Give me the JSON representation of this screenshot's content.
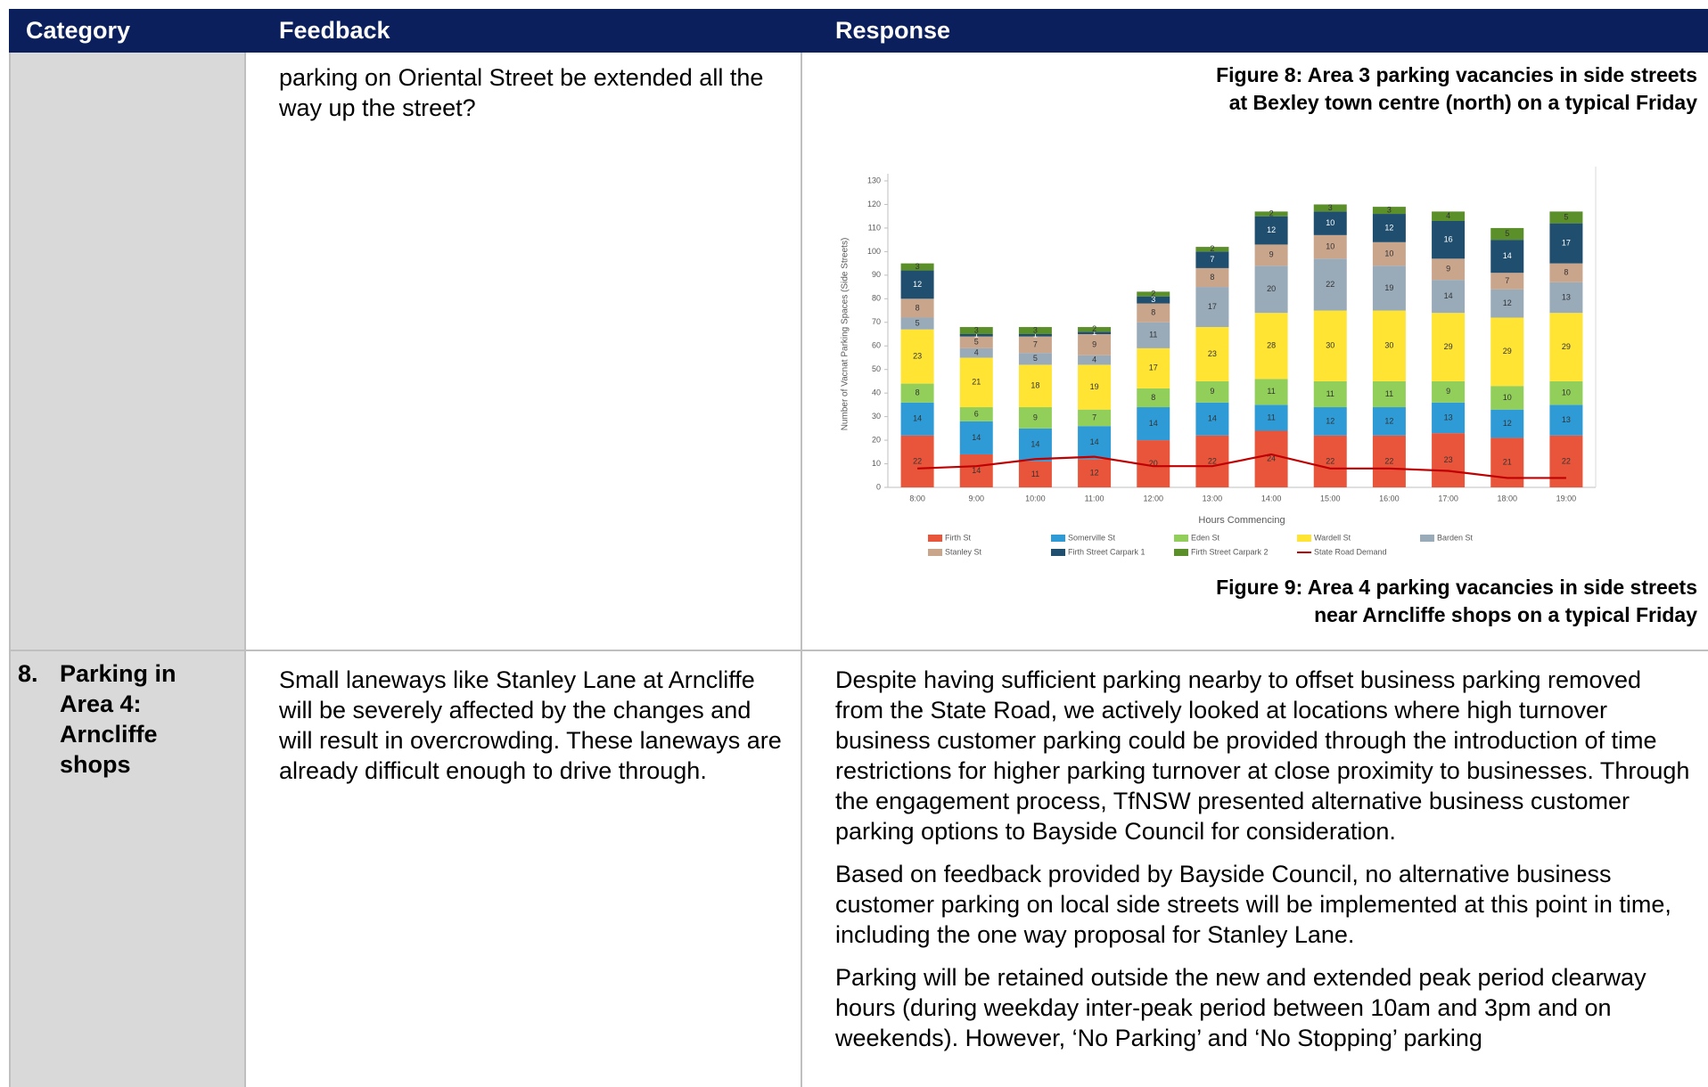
{
  "table": {
    "headers": [
      "Category",
      "Feedback",
      "Response"
    ],
    "rows": [
      {
        "feedback": "parking on Oriental Street be extended all the way up the street?",
        "figure_captions": [
          [
            "Figure 8: Area 3 parking vacancies in side streets",
            "at Bexley town centre (north) on a typical Friday"
          ],
          [
            "Figure 9: Area 4 parking vacancies in side streets",
            "near Arncliffe shops on a typical Friday"
          ]
        ]
      },
      {
        "category_number": "8.",
        "category": "Parking in Area 4: Arncliffe shops",
        "feedback": "Small laneways like Stanley Lane at Arncliffe will be severely affected by the changes and will result in overcrowding. These laneways are already difficult enough to drive through.",
        "response": [
          "Despite having sufficient parking nearby to offset business parking removed from the State Road, we actively looked at locations where high turnover business customer parking could be provided through the introduction of time restrictions for higher parking turnover at close proximity to businesses. Through the engagement process, TfNSW presented alternative business customer parking options to Bayside Council for consideration.",
          "Based on feedback provided by Bayside Council, no alternative business customer parking on local side streets will be implemented at this point in time, including the one way proposal for Stanley Lane.",
          "Parking will be retained outside the new and extended peak period clearway hours (during weekday inter-peak period between 10am and 3pm and on weekends). However, ‘No Parking’ and ‘No Stopping’ parking"
        ]
      }
    ]
  },
  "chart_data": {
    "type": "stacked_bar",
    "x_label": "Hours Commencing",
    "y_label": "Number of Vacnat Parking Spaces (Side Streets)",
    "categories": [
      "8:00",
      "9:00",
      "10:00",
      "11:00",
      "12:00",
      "13:00",
      "14:00",
      "15:00",
      "16:00",
      "17:00",
      "18:00",
      "19:00"
    ],
    "series": [
      {
        "name": "Firth St",
        "color": "#e8553a",
        "values": [
          22,
          14,
          11,
          12,
          20,
          22,
          24,
          22,
          22,
          23,
          21,
          22
        ]
      },
      {
        "name": "Somerville St",
        "color": "#2e9bd6",
        "values": [
          14,
          14,
          14,
          14,
          14,
          14,
          11,
          12,
          12,
          13,
          12,
          13
        ]
      },
      {
        "name": "Eden St",
        "color": "#92cf5a",
        "values": [
          8,
          6,
          9,
          7,
          8,
          9,
          11,
          11,
          11,
          9,
          10,
          10
        ]
      },
      {
        "name": "Wardell St",
        "color": "#ffe433",
        "values": [
          23,
          21,
          18,
          19,
          17,
          23,
          28,
          30,
          30,
          29,
          29,
          29
        ]
      },
      {
        "name": "Barden St",
        "color": "#99aab9",
        "values": [
          5,
          4,
          5,
          4,
          11,
          17,
          20,
          22,
          19,
          14,
          12,
          13
        ]
      },
      {
        "name": "Stanley St",
        "color": "#c9a58c",
        "values": [
          8,
          5,
          7,
          9,
          8,
          8,
          9,
          10,
          10,
          9,
          7,
          8
        ]
      },
      {
        "name": "Firth Street Carpark 1",
        "color": "#1f4e6e",
        "values": [
          12,
          1,
          1,
          1,
          3,
          7,
          12,
          10,
          12,
          16,
          14,
          17
        ]
      },
      {
        "name": "Firth Street Carpark 2",
        "color": "#5b8f2a",
        "values": [
          3,
          3,
          3,
          2,
          2,
          2,
          2,
          3,
          3,
          4,
          5,
          5
        ]
      }
    ],
    "lines": [
      {
        "name": "State Road Demand",
        "color": "#c00000",
        "values": [
          8,
          9,
          12,
          13,
          9,
          9,
          14,
          8,
          8,
          7,
          4,
          4
        ]
      }
    ],
    "ylim": [
      0,
      130
    ],
    "yticks": [
      0,
      10,
      20,
      30,
      40,
      50,
      60,
      70,
      80,
      90,
      100,
      110,
      120,
      130
    ],
    "grid": false
  }
}
